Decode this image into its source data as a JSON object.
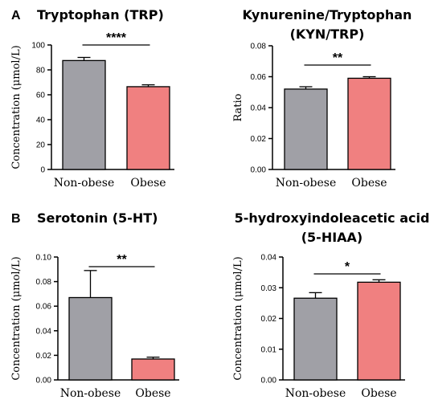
{
  "colors": {
    "non_obese": "#a0a0a6",
    "obese": "#f08080",
    "stroke": "#000000"
  },
  "chart_data": [
    {
      "type": "bar",
      "panel_label": "A",
      "title_lines": [
        "Tryptophan (TRP)"
      ],
      "ylabel": "Concentration (μmol/L)",
      "categories": [
        "Non-obese",
        "Obese"
      ],
      "values": [
        87.5,
        66.5
      ],
      "errors": [
        2.5,
        1.5
      ],
      "ylim": [
        0,
        100
      ],
      "yticks": [
        "0",
        "20",
        "40",
        "60",
        "80",
        "100"
      ],
      "significance": "****"
    },
    {
      "type": "bar",
      "panel_label": "",
      "title_lines": [
        "Kynurenine/Tryptophan",
        "(KYN/TRP)"
      ],
      "ylabel": "Ratio",
      "categories": [
        "Non-obese",
        "Obese"
      ],
      "values": [
        0.052,
        0.059
      ],
      "errors": [
        0.0015,
        0.001
      ],
      "ylim": [
        0,
        0.08
      ],
      "yticks": [
        "0.00",
        "0.02",
        "0.04",
        "0.06",
        "0.08"
      ],
      "significance": "**"
    },
    {
      "type": "bar",
      "panel_label": "B",
      "title_lines": [
        "Serotonin (5-HT)"
      ],
      "ylabel": "Concentration (μmol/L)",
      "categories": [
        "Non-obese",
        "Obese"
      ],
      "values": [
        0.067,
        0.017
      ],
      "errors": [
        0.022,
        0.0015
      ],
      "ylim": [
        0,
        0.1
      ],
      "yticks": [
        "0.00",
        "0.02",
        "0.04",
        "0.06",
        "0.08",
        "0.10"
      ],
      "significance": "**"
    },
    {
      "type": "bar",
      "panel_label": "",
      "title_lines": [
        "5-hydroxyindoleacetic acid",
        "(5-HIAA)"
      ],
      "ylabel": "Concentration (μmol/L)",
      "categories": [
        "Non-obese",
        "Obese"
      ],
      "values": [
        0.0266,
        0.0318
      ],
      "errors": [
        0.0018,
        0.0008
      ],
      "ylim": [
        0,
        0.04
      ],
      "yticks": [
        "0.00",
        "0.01",
        "0.02",
        "0.03",
        "0.04"
      ],
      "significance": "*"
    }
  ]
}
